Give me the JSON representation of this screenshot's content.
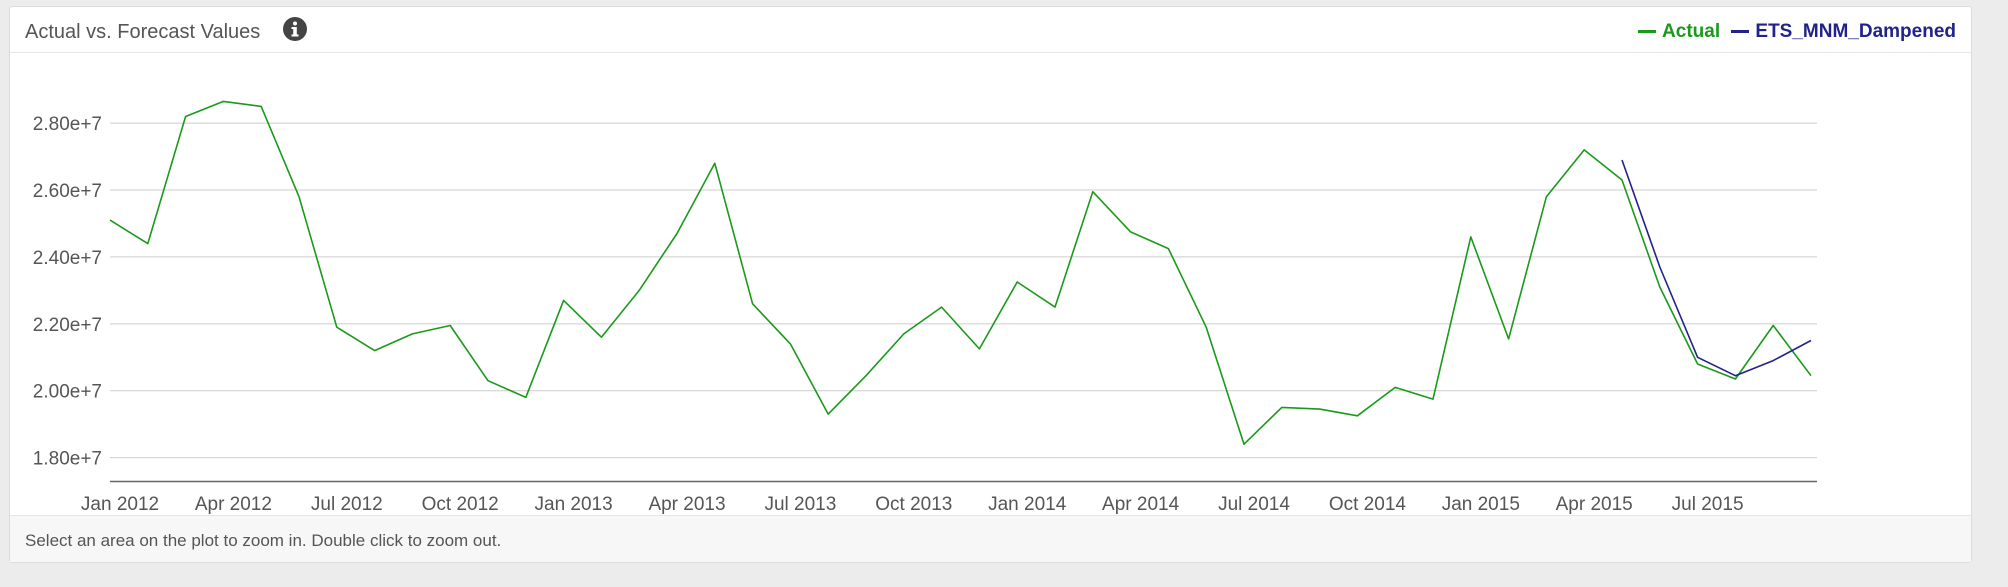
{
  "panel": {
    "title": "Actual vs. Forecast Values",
    "footer": "Select an area on the plot to zoom in. Double click to zoom out."
  },
  "icons": {
    "info": "info-circle-icon"
  },
  "chart_data": {
    "type": "line",
    "title": "Actual vs. Forecast Values",
    "xlabel": "",
    "ylabel": "",
    "x_range": [
      "2012-01",
      "2015-12"
    ],
    "ylim": [
      17300000,
      29500000
    ],
    "grid": true,
    "legend_placement": "top-right",
    "y_ticks": [
      {
        "value": 18000000,
        "label": "1.80e+7"
      },
      {
        "value": 20000000,
        "label": "2.00e+7"
      },
      {
        "value": 22000000,
        "label": "2.20e+7"
      },
      {
        "value": 24000000,
        "label": "2.40e+7"
      },
      {
        "value": 26000000,
        "label": "2.60e+7"
      },
      {
        "value": 28000000,
        "label": "2.80e+7"
      }
    ],
    "x_ticks": [
      {
        "value": "2012-01",
        "label": "Jan 2012"
      },
      {
        "value": "2012-04",
        "label": "Apr 2012"
      },
      {
        "value": "2012-07",
        "label": "Jul 2012"
      },
      {
        "value": "2012-10",
        "label": "Oct 2012"
      },
      {
        "value": "2013-01",
        "label": "Jan 2013"
      },
      {
        "value": "2013-04",
        "label": "Apr 2013"
      },
      {
        "value": "2013-07",
        "label": "Jul 2013"
      },
      {
        "value": "2013-10",
        "label": "Oct 2013"
      },
      {
        "value": "2014-01",
        "label": "Jan 2014"
      },
      {
        "value": "2014-04",
        "label": "Apr 2014"
      },
      {
        "value": "2014-07",
        "label": "Jul 2014"
      },
      {
        "value": "2014-10",
        "label": "Oct 2014"
      },
      {
        "value": "2015-01",
        "label": "Jan 2015"
      },
      {
        "value": "2015-04",
        "label": "Apr 2015"
      },
      {
        "value": "2015-07",
        "label": "Jul 2015"
      }
    ],
    "series": [
      {
        "name": "Actual",
        "color": "#1a9a1a",
        "points": [
          {
            "x": "2012-01",
            "y": 25100000
          },
          {
            "x": "2012-02",
            "y": 24400000
          },
          {
            "x": "2012-03",
            "y": 28200000
          },
          {
            "x": "2012-04",
            "y": 28650000
          },
          {
            "x": "2012-05",
            "y": 28500000
          },
          {
            "x": "2012-06",
            "y": 25800000
          },
          {
            "x": "2012-07",
            "y": 21900000
          },
          {
            "x": "2012-08",
            "y": 21200000
          },
          {
            "x": "2012-09",
            "y": 21700000
          },
          {
            "x": "2012-10",
            "y": 21950000
          },
          {
            "x": "2012-11",
            "y": 20300000
          },
          {
            "x": "2012-12",
            "y": 19800000
          },
          {
            "x": "2013-01",
            "y": 22700000
          },
          {
            "x": "2013-02",
            "y": 21600000
          },
          {
            "x": "2013-03",
            "y": 23000000
          },
          {
            "x": "2013-04",
            "y": 24700000
          },
          {
            "x": "2013-05",
            "y": 26800000
          },
          {
            "x": "2013-06",
            "y": 22600000
          },
          {
            "x": "2013-07",
            "y": 21400000
          },
          {
            "x": "2013-08",
            "y": 19300000
          },
          {
            "x": "2013-09",
            "y": 20450000
          },
          {
            "x": "2013-10",
            "y": 21700000
          },
          {
            "x": "2013-11",
            "y": 22500000
          },
          {
            "x": "2013-12",
            "y": 21250000
          },
          {
            "x": "2014-01",
            "y": 23250000
          },
          {
            "x": "2014-02",
            "y": 22500000
          },
          {
            "x": "2014-03",
            "y": 25950000
          },
          {
            "x": "2014-04",
            "y": 24750000
          },
          {
            "x": "2014-05",
            "y": 24250000
          },
          {
            "x": "2014-06",
            "y": 21900000
          },
          {
            "x": "2014-07",
            "y": 18400000
          },
          {
            "x": "2014-08",
            "y": 19500000
          },
          {
            "x": "2014-09",
            "y": 19450000
          },
          {
            "x": "2014-10",
            "y": 19250000
          },
          {
            "x": "2014-11",
            "y": 20100000
          },
          {
            "x": "2014-12",
            "y": 19750000
          },
          {
            "x": "2015-01",
            "y": 24600000
          },
          {
            "x": "2015-02",
            "y": 21550000
          },
          {
            "x": "2015-03",
            "y": 25800000
          },
          {
            "x": "2015-04",
            "y": 27200000
          },
          {
            "x": "2015-05",
            "y": 26300000
          },
          {
            "x": "2015-06",
            "y": 23100000
          },
          {
            "x": "2015-07",
            "y": 20800000
          },
          {
            "x": "2015-08",
            "y": 20350000
          },
          {
            "x": "2015-09",
            "y": 21950000
          },
          {
            "x": "2015-10",
            "y": 20450000
          }
        ]
      },
      {
        "name": "ETS_MNM_Dampened",
        "color": "#22228a",
        "points": [
          {
            "x": "2015-05",
            "y": 26900000
          },
          {
            "x": "2015-06",
            "y": 23700000
          },
          {
            "x": "2015-07",
            "y": 21000000
          },
          {
            "x": "2015-08",
            "y": 20450000
          },
          {
            "x": "2015-09",
            "y": 20900000
          },
          {
            "x": "2015-10",
            "y": 21500000
          }
        ]
      }
    ]
  }
}
